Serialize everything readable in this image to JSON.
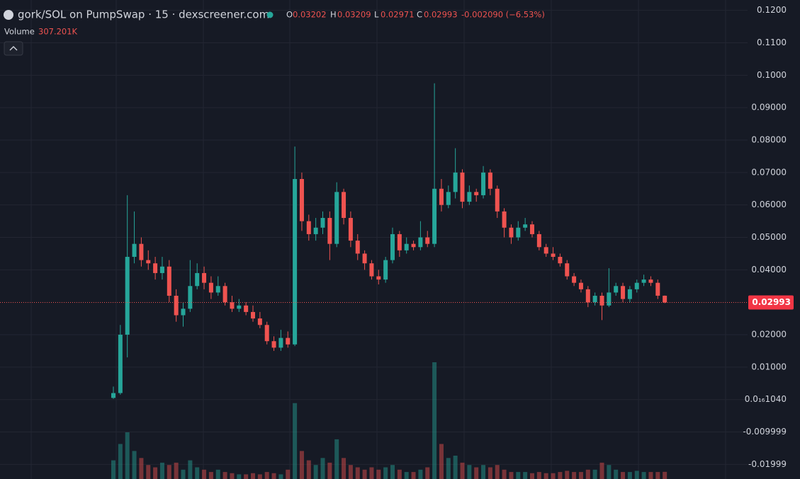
{
  "chart_data": {
    "type": "candlestick",
    "title": "gork/SOL on PumpSwap · 15 · dexscreener.com",
    "ohlc_keys": [
      "O",
      "H",
      "L",
      "C"
    ],
    "change_label": "-0.002090 (−6.53%)",
    "volume_title": "Volume",
    "volume_label": "307.201K",
    "up_color": "#26a69a",
    "down_color": "#ef5350",
    "grid": true,
    "ylim": [
      -0.0245,
      0.1232
    ],
    "yticks": [
      {
        "value": 0.12,
        "label": "0.1200"
      },
      {
        "value": 0.11,
        "label": "0.1100"
      },
      {
        "value": 0.1,
        "label": "0.1000"
      },
      {
        "value": 0.09,
        "label": "0.09000"
      },
      {
        "value": 0.08,
        "label": "0.08000"
      },
      {
        "value": 0.07,
        "label": "0.07000"
      },
      {
        "value": 0.06,
        "label": "0.06000"
      },
      {
        "value": 0.05,
        "label": "0.05000"
      },
      {
        "value": 0.04,
        "label": "0.04000"
      },
      {
        "value": 0.02,
        "label": "0.02000"
      },
      {
        "value": 0.01,
        "label": "0.01000"
      },
      {
        "value": 1.04e-17,
        "label": "0.0₁₆1040"
      },
      -0.009999,
      -0.01999
    ],
    "open": [
      0.0005,
      0.002,
      0.02,
      0.044,
      0.048,
      0.043,
      0.042,
      0.039,
      0.041,
      0.032,
      0.026,
      0.028,
      0.035,
      0.039,
      0.036,
      0.033,
      0.035,
      0.03,
      0.028,
      0.029,
      0.027,
      0.025,
      0.023,
      0.018,
      0.016,
      0.019,
      0.017,
      0.068,
      0.055,
      0.051,
      0.053,
      0.056,
      0.048,
      0.064,
      0.056,
      0.049,
      0.045,
      0.042,
      0.038,
      0.037,
      0.043,
      0.051,
      0.046,
      0.048,
      0.047,
      0.05,
      0.048,
      0.065,
      0.06,
      0.064,
      0.07,
      0.061,
      0.064,
      0.063,
      0.07,
      0.065,
      0.058,
      0.053,
      0.05,
      0.053,
      0.054,
      0.051,
      0.047,
      0.045,
      0.044,
      0.042,
      0.038,
      0.036,
      0.034,
      0.03,
      0.032,
      0.029,
      0.033,
      0.035,
      0.031,
      0.034,
      0.036,
      0.037,
      0.036,
      0.03202
    ],
    "high": [
      0.004,
      0.023,
      0.063,
      0.058,
      0.05,
      0.046,
      0.044,
      0.044,
      0.043,
      0.034,
      0.03,
      0.043,
      0.042,
      0.041,
      0.038,
      0.038,
      0.036,
      0.032,
      0.031,
      0.03,
      0.029,
      0.027,
      0.024,
      0.0195,
      0.0215,
      0.021,
      0.078,
      0.07,
      0.057,
      0.056,
      0.058,
      0.058,
      0.067,
      0.065,
      0.058,
      0.051,
      0.046,
      0.043,
      0.04,
      0.044,
      0.053,
      0.052,
      0.05,
      0.049,
      0.055,
      0.052,
      0.0975,
      0.068,
      0.066,
      0.0775,
      0.071,
      0.066,
      0.065,
      0.072,
      0.071,
      0.066,
      0.059,
      0.054,
      0.055,
      0.056,
      0.055,
      0.052,
      0.048,
      0.047,
      0.045,
      0.043,
      0.039,
      0.037,
      0.035,
      0.033,
      0.033,
      0.0405,
      0.036,
      0.036,
      0.035,
      0.037,
      0.0385,
      0.038,
      0.037,
      0.03209
    ],
    "low": [
      0.0002,
      0.0015,
      0.013,
      0.042,
      0.041,
      0.04,
      0.037,
      0.037,
      0.03,
      0.024,
      0.0225,
      0.027,
      0.034,
      0.034,
      0.031,
      0.032,
      0.029,
      0.027,
      0.027,
      0.026,
      0.024,
      0.022,
      0.017,
      0.015,
      0.015,
      0.016,
      0.0165,
      0.052,
      0.049,
      0.049,
      0.051,
      0.043,
      0.047,
      0.054,
      0.047,
      0.043,
      0.04,
      0.037,
      0.0355,
      0.036,
      0.042,
      0.044,
      0.045,
      0.046,
      0.046,
      0.047,
      0.047,
      0.058,
      0.059,
      0.062,
      0.059,
      0.06,
      0.061,
      0.062,
      0.063,
      0.056,
      0.05,
      0.048,
      0.049,
      0.052,
      0.05,
      0.046,
      0.044,
      0.043,
      0.041,
      0.037,
      0.035,
      0.033,
      0.0285,
      0.029,
      0.0245,
      0.0285,
      0.032,
      0.03,
      0.03,
      0.033,
      0.035,
      0.035,
      0.031,
      0.02971
    ],
    "close": [
      0.002,
      0.02,
      0.044,
      0.048,
      0.043,
      0.042,
      0.039,
      0.041,
      0.032,
      0.026,
      0.028,
      0.035,
      0.039,
      0.036,
      0.033,
      0.035,
      0.03,
      0.028,
      0.029,
      0.027,
      0.025,
      0.023,
      0.018,
      0.016,
      0.019,
      0.017,
      0.068,
      0.055,
      0.051,
      0.053,
      0.056,
      0.048,
      0.064,
      0.056,
      0.049,
      0.045,
      0.042,
      0.038,
      0.037,
      0.043,
      0.051,
      0.046,
      0.048,
      0.047,
      0.05,
      0.048,
      0.065,
      0.06,
      0.064,
      0.07,
      0.061,
      0.064,
      0.063,
      0.07,
      0.065,
      0.058,
      0.053,
      0.05,
      0.053,
      0.054,
      0.051,
      0.047,
      0.045,
      0.044,
      0.042,
      0.038,
      0.036,
      0.034,
      0.03,
      0.032,
      0.029,
      0.033,
      0.035,
      0.031,
      0.034,
      0.036,
      0.037,
      0.036,
      0.03202,
      0.02993
    ],
    "volume": [
      800,
      1500,
      2000,
      1200,
      900,
      600,
      500,
      700,
      600,
      700,
      400,
      800,
      500,
      400,
      300,
      400,
      300,
      250,
      200,
      200,
      250,
      200,
      300,
      250,
      200,
      400,
      3250,
      1200,
      800,
      600,
      900,
      700,
      1700,
      900,
      600,
      500,
      400,
      500,
      400,
      500,
      600,
      400,
      300,
      300,
      400,
      500,
      5000,
      1500,
      900,
      1000,
      700,
      600,
      500,
      600,
      500,
      600,
      400,
      300,
      300,
      300,
      250,
      300,
      250,
      250,
      300,
      350,
      300,
      300,
      400,
      400,
      700,
      600,
      400,
      300,
      300,
      350,
      300,
      300,
      300,
      307.201
    ]
  }
}
